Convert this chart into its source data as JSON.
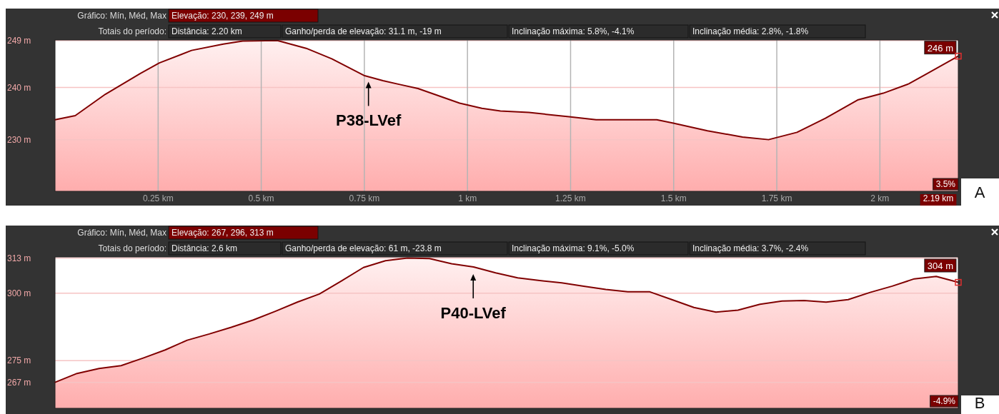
{
  "chart_data": [
    {
      "type": "area",
      "x": [
        0,
        0.049,
        0.122,
        0.207,
        0.253,
        0.331,
        0.408,
        0.455,
        0.539,
        0.609,
        0.671,
        0.749,
        0.795,
        0.834,
        0.88,
        0.981,
        1.035,
        1.08,
        1.149,
        1.246,
        1.312,
        1.459,
        1.497,
        1.582,
        1.667,
        1.73,
        1.799,
        1.868,
        1.946,
        2.008,
        2.07,
        2.109,
        2.19
      ],
      "series": [
        {
          "color": "#800000",
          "values": [
            233.8,
            234.6,
            238.7,
            242.7,
            244.7,
            247.1,
            248.3,
            248.9,
            249.0,
            247.5,
            245.5,
            242.3,
            241.3,
            240.6,
            239.8,
            237.0,
            236.0,
            235.5,
            235.2,
            234.4,
            233.8,
            233.8,
            233.2,
            231.7,
            230.5,
            230.0,
            231.4,
            234.1,
            237.6,
            238.9,
            240.7,
            242.4,
            246
          ]
        }
      ],
      "xlim": [
        0,
        2.19
      ],
      "xticks": [
        {
          "value": 0.25,
          "label": "0.25 km"
        },
        {
          "value": 0.5,
          "label": "0.5 km"
        },
        {
          "value": 0.75,
          "label": "0.75 km"
        },
        {
          "value": 1,
          "label": "1 km"
        },
        {
          "value": 1.25,
          "label": "1.25 km"
        },
        {
          "value": 1.5,
          "label": "1.5 km"
        },
        {
          "value": 1.75,
          "label": "1.75 km"
        },
        {
          "value": 2,
          "label": "2 km"
        },
        {
          "value": 2.19,
          "label": "2.19 km"
        }
      ],
      "ylim": [
        220.1,
        249.1
      ],
      "yticks": [
        {
          "value": 249,
          "label": "249 m"
        },
        {
          "value": 240,
          "label": "240 m"
        },
        {
          "value": 230,
          "label": "230 m"
        }
      ],
      "grid": true,
      "annotations": [
        "Gráfico: Mín, Méd, Max",
        "Elevação: 230, 239, 249 m",
        "Totais do período:",
        "Distância: 2.20 km",
        "Ganho/perda de elevação: 31.1 m, -19 m",
        "Inclinação máxima: 5.8%, -4.1%",
        "Inclinação média: 2.8%, -1.8%",
        "3.5%",
        "A",
        {
          "text": "P38-LVef",
          "x": 0.76,
          "y": 242.2
        },
        {
          "text": "246 m",
          "x": 2.19,
          "y": 246
        }
      ]
    },
    {
      "type": "area",
      "categories": [
        null,
        null,
        null,
        null,
        null,
        null,
        null,
        null,
        null,
        null,
        null,
        null,
        null,
        null,
        null,
        null,
        null,
        null,
        null,
        null,
        null,
        null,
        null,
        null,
        null,
        null,
        null,
        null,
        null,
        null,
        null,
        null,
        null,
        null,
        null,
        null,
        null,
        null,
        null,
        null,
        null,
        null
      ],
      "series": [
        {
          "color": "#800000",
          "values": [
            267.0,
            270.3,
            272.1,
            273.2,
            276.0,
            279.0,
            282.6,
            284.9,
            287.4,
            290.1,
            293.3,
            296.7,
            299.7,
            304.5,
            309.5,
            312.0,
            313.0,
            312.8,
            310.9,
            309.7,
            307.5,
            305.7,
            304.7,
            303.8,
            302.6,
            301.4,
            300.5,
            300.5,
            297.6,
            294.7,
            293.0,
            293.7,
            295.9,
            297.1,
            297.3,
            296.7,
            297.6,
            300.3,
            302.6,
            305.3,
            306.2,
            304
          ]
        }
      ],
      "ylim": [
        257.4,
        313.4
      ],
      "yticks": [
        {
          "value": 313,
          "label": "313 m"
        },
        {
          "value": 300,
          "label": "300 m"
        },
        {
          "value": 275,
          "label": "275 m"
        },
        {
          "value": 267,
          "label": "267 m"
        }
      ],
      "grid": "y",
      "tick_labels": "y",
      "annotations": [
        "Gráfico: Mín, Méd, Max",
        "Elevação: 267, 296, 313 m",
        "Totais do período:",
        "Distância: 2.6 km",
        "Ganho/perda de elevação: 61 m, -23.8 m",
        "Inclinação máxima: 9.1%, -5.0%",
        "Inclinação média: 3.7%, -2.4%",
        "-4.9%",
        "B",
        "P40-LVef",
        "304 m"
      ]
    }
  ]
}
